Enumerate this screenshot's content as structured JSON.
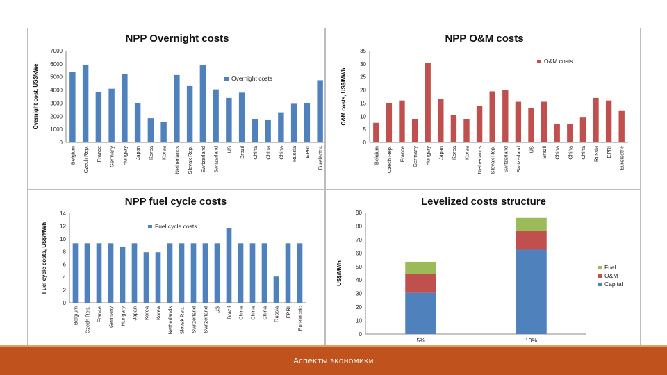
{
  "footer": {
    "text": "Аспекты экономики"
  },
  "colors": {
    "blue": "#4f81bd",
    "red": "#c0504d",
    "green": "#9bbb59",
    "footer": "#c0531d"
  },
  "chart_data": [
    {
      "type": "bar",
      "title": "NPP Overnight costs",
      "ylabel": "Overnight cost, US$/kWe",
      "xlabel": "",
      "legend": "Overnight costs",
      "ylim": [
        0,
        7000
      ],
      "yticks": [
        0,
        1000,
        2000,
        3000,
        4000,
        5000,
        6000,
        7000
      ],
      "categories": [
        "Belgium",
        "Czech Rep.",
        "France",
        "Germany",
        "Hungary",
        "Japan",
        "Korea",
        "Korea",
        "Netherlands",
        "Slovak Rep.",
        "Switzerland",
        "Switzerland",
        "US",
        "Brazil",
        "China",
        "China",
        "China",
        "Russia",
        "EPRI",
        "Eurelectric"
      ],
      "values": [
        5400,
        5900,
        3850,
        4100,
        5250,
        3000,
        1850,
        1550,
        5150,
        4300,
        5900,
        4050,
        3400,
        3800,
        1750,
        1700,
        2300,
        2950,
        3000,
        4750
      ]
    },
    {
      "type": "bar",
      "title": "NPP O&M costs",
      "ylabel": "O&M costs, US$/MWh",
      "xlabel": "",
      "legend": "O&M costs",
      "ylim": [
        0,
        35
      ],
      "yticks": [
        0,
        5,
        10,
        15,
        20,
        25,
        30,
        35
      ],
      "categories": [
        "Belgium",
        "Czech Rep.",
        "France",
        "Germany",
        "Hungary",
        "Japan",
        "Korea",
        "Korea",
        "Netherlands",
        "Slovak Rep.",
        "Switzerland",
        "Switzerland",
        "US",
        "Brazil",
        "China",
        "China",
        "China",
        "Russia",
        "EPRI",
        "Eurelectric"
      ],
      "values": [
        7.5,
        15,
        16,
        9,
        30.5,
        16.5,
        10.5,
        9,
        14,
        19.5,
        20,
        15.5,
        13,
        15.5,
        7,
        7,
        9.5,
        17,
        16,
        12
      ]
    },
    {
      "type": "bar",
      "title": "NPP fuel cycle costs",
      "ylabel": "Fuel cycle costs, US$/MWh",
      "xlabel": "",
      "legend": "Fuel cycle costs",
      "ylim": [
        0,
        14
      ],
      "yticks": [
        0,
        2,
        4,
        6,
        8,
        10,
        12,
        14
      ],
      "categories": [
        "Belgium",
        "Czech Rep.",
        "France",
        "Germany",
        "Hungary",
        "Japan",
        "Korea",
        "Korea",
        "Netherlands",
        "Slovak Rep.",
        "Switzerland",
        "Switzerland",
        "US",
        "Brazil",
        "China",
        "China",
        "China",
        "Russia",
        "EPRI",
        "Eurelectric"
      ],
      "values": [
        9.3,
        9.3,
        9.3,
        9.3,
        8.8,
        9.3,
        7.9,
        7.9,
        9.3,
        9.3,
        9.3,
        9.3,
        9.3,
        11.7,
        9.3,
        9.3,
        9.3,
        4.1,
        9.3,
        9.3
      ]
    },
    {
      "type": "bar",
      "title": "Levelized costs structure",
      "ylabel": "US$/MWh",
      "xlabel": "",
      "stacked": true,
      "ylim": [
        0,
        90
      ],
      "yticks": [
        0,
        10,
        20,
        30,
        40,
        50,
        60,
        70,
        80,
        90
      ],
      "categories": [
        "5%",
        "10%"
      ],
      "series": [
        {
          "name": "Capital",
          "values": [
            30.5,
            62.5
          ]
        },
        {
          "name": "O&M",
          "values": [
            14,
            14
          ]
        },
        {
          "name": "Fuel",
          "values": [
            9,
            9.5
          ]
        }
      ]
    }
  ]
}
